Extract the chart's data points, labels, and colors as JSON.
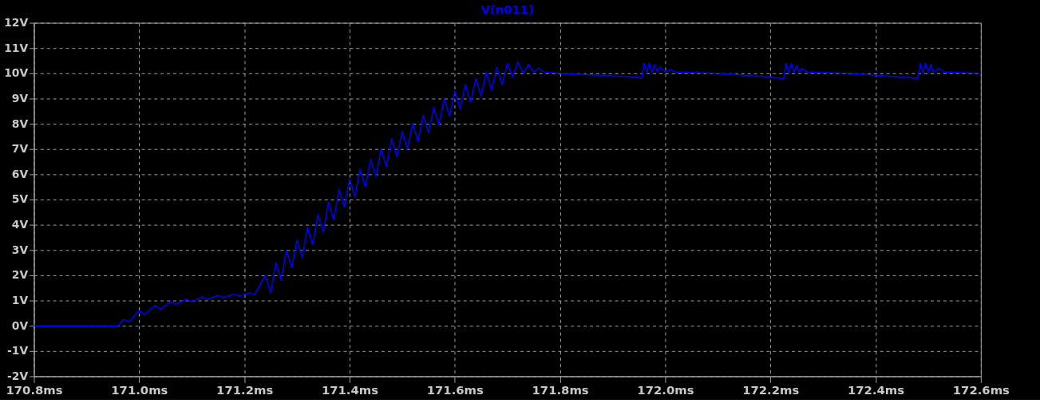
{
  "chart_data": {
    "type": "line",
    "title": "V(n011)",
    "x": [
      170.8,
      170.96,
      170.97,
      170.98,
      171.0,
      171.01,
      171.03,
      171.04,
      171.06,
      171.07,
      171.09,
      171.1,
      171.12,
      171.13,
      171.15,
      171.16,
      171.18,
      171.19,
      171.21,
      171.22,
      171.24,
      171.25,
      171.26,
      171.27,
      171.28,
      171.29,
      171.3,
      171.31,
      171.32,
      171.33,
      171.34,
      171.35,
      171.36,
      171.37,
      171.38,
      171.39,
      171.4,
      171.41,
      171.42,
      171.43,
      171.44,
      171.45,
      171.46,
      171.47,
      171.48,
      171.49,
      171.5,
      171.51,
      171.52,
      171.53,
      171.54,
      171.55,
      171.56,
      171.57,
      171.58,
      171.59,
      171.6,
      171.61,
      171.62,
      171.63,
      171.64,
      171.65,
      171.66,
      171.67,
      171.68,
      171.69,
      171.7,
      171.71,
      171.72,
      171.73,
      171.74,
      171.75,
      171.76,
      171.77,
      171.8,
      171.85,
      171.9,
      171.95,
      171.955,
      171.96,
      171.965,
      171.97,
      171.975,
      171.98,
      171.985,
      171.99,
      172.0,
      172.01,
      172.02,
      172.1,
      172.2,
      172.22,
      172.225,
      172.23,
      172.235,
      172.24,
      172.245,
      172.25,
      172.255,
      172.26,
      172.27,
      172.35,
      172.45,
      172.48,
      172.485,
      172.49,
      172.495,
      172.5,
      172.505,
      172.51,
      172.52,
      172.53,
      172.6
    ],
    "series": [
      {
        "color": "#0000ff",
        "values": [
          0,
          0,
          0.25,
          0.15,
          0.6,
          0.45,
          0.8,
          0.65,
          0.95,
          0.85,
          1.05,
          0.95,
          1.15,
          1.05,
          1.2,
          1.12,
          1.25,
          1.18,
          1.3,
          1.25,
          2.0,
          1.3,
          2.5,
          1.8,
          3.0,
          2.3,
          3.4,
          2.7,
          3.9,
          3.2,
          4.4,
          3.7,
          4.9,
          4.2,
          5.4,
          4.7,
          5.8,
          5.1,
          6.2,
          5.5,
          6.6,
          5.9,
          7.0,
          6.3,
          7.4,
          6.7,
          7.7,
          7.0,
          8.0,
          7.3,
          8.35,
          7.65,
          8.65,
          7.95,
          9.0,
          8.3,
          9.3,
          8.6,
          9.55,
          8.85,
          9.8,
          9.1,
          10.05,
          9.35,
          10.25,
          9.55,
          10.4,
          9.85,
          10.45,
          10.0,
          10.35,
          10.05,
          10.2,
          10.05,
          10.0,
          9.95,
          9.9,
          9.85,
          9.8,
          10.4,
          10.0,
          10.4,
          10.05,
          10.35,
          10.05,
          10.25,
          10.05,
          10.15,
          10.05,
          10.0,
          9.85,
          9.8,
          9.8,
          10.4,
          10.0,
          10.4,
          10.05,
          10.3,
          10.05,
          10.2,
          10.05,
          10.0,
          9.85,
          9.8,
          10.4,
          10.0,
          10.4,
          10.05,
          10.35,
          10.05,
          10.2,
          10.05,
          10.0
        ]
      }
    ],
    "xlim": [
      170.8,
      172.6
    ],
    "xticks": [
      {
        "value": 170.8,
        "label": "170.8ms"
      },
      {
        "value": 171.0,
        "label": "171.0ms"
      },
      {
        "value": 171.2,
        "label": "171.2ms"
      },
      {
        "value": 171.4,
        "label": "171.4ms"
      },
      {
        "value": 171.6,
        "label": "171.6ms"
      },
      {
        "value": 171.8,
        "label": "171.8ms"
      },
      {
        "value": 172.0,
        "label": "172.0ms"
      },
      {
        "value": 172.2,
        "label": "172.2ms"
      },
      {
        "value": 172.4,
        "label": "172.4ms"
      },
      {
        "value": 172.6,
        "label": "172.6ms"
      }
    ],
    "ylim": [
      -2,
      12
    ],
    "yticks": [
      {
        "value": -2,
        "label": "-2V"
      },
      {
        "value": -1,
        "label": "-1V"
      },
      {
        "value": 0,
        "label": "0V"
      },
      {
        "value": 1,
        "label": "1V"
      },
      {
        "value": 2,
        "label": "2V"
      },
      {
        "value": 3,
        "label": "3V"
      },
      {
        "value": 4,
        "label": "4V"
      },
      {
        "value": 5,
        "label": "5V"
      },
      {
        "value": 6,
        "label": "6V"
      },
      {
        "value": 7,
        "label": "7V"
      },
      {
        "value": 8,
        "label": "8V"
      },
      {
        "value": 9,
        "label": "9V"
      },
      {
        "value": 10,
        "label": "10V"
      },
      {
        "value": 11,
        "label": "11V"
      },
      {
        "value": 12,
        "label": "12V"
      }
    ],
    "grid": true,
    "line_style": "solid",
    "marker": "none"
  }
}
